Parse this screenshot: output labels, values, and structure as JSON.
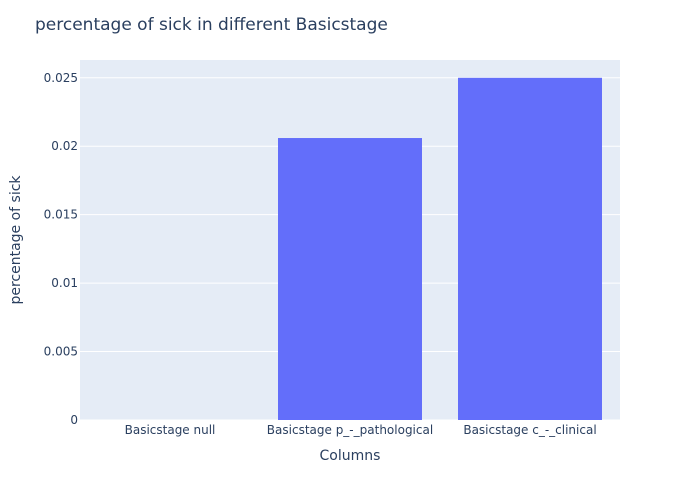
{
  "chart_data": {
    "type": "bar",
    "title": "percentage of sick in different Basicstage",
    "xlabel": "Columns",
    "ylabel": "percentage of sick",
    "categories": [
      "Basicstage null",
      "Basicstage p_-_pathological",
      "Basicstage c_-_clinical"
    ],
    "values": [
      0,
      0.0206,
      0.025
    ],
    "ylim": [
      0,
      0.0263
    ],
    "yticks": [
      0,
      0.005,
      0.01,
      0.015,
      0.02,
      0.025
    ],
    "ytick_labels": [
      "0",
      "0.005",
      "0.01",
      "0.015",
      "0.02",
      "0.025"
    ],
    "grid": true,
    "legend": "none",
    "colors": {
      "bar": "#636efa",
      "plot_bg": "#e5ecf6",
      "grid": "#ffffff",
      "text": "#2a3f5f"
    }
  }
}
